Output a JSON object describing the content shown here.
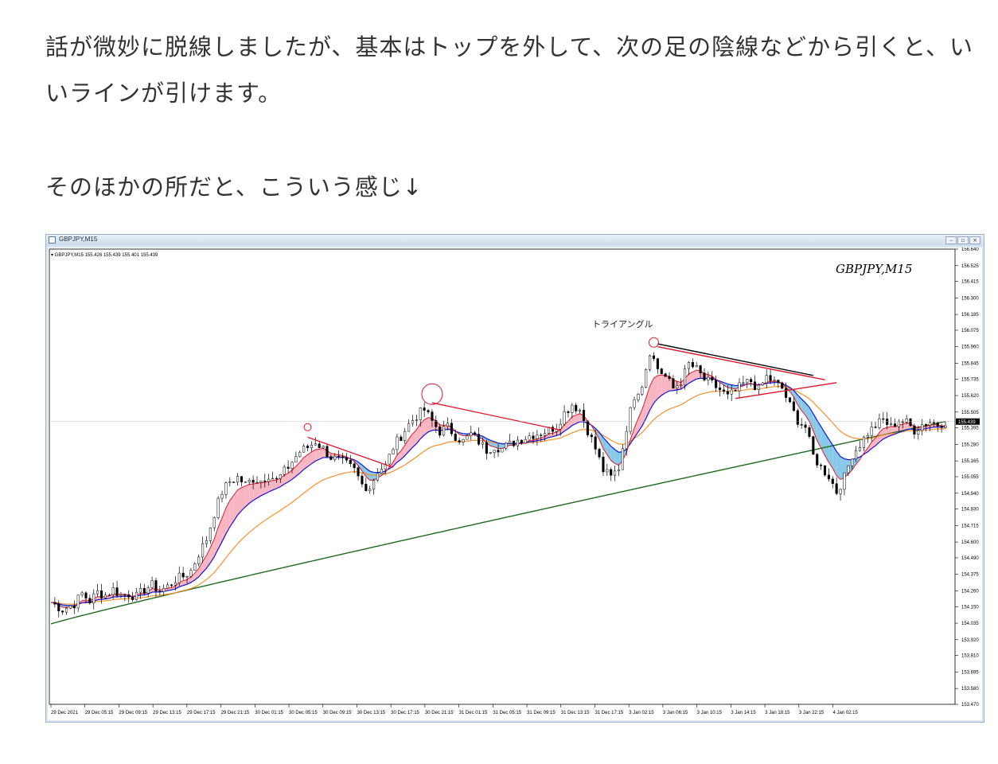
{
  "article": {
    "para1_line1": "話が微妙に脱線しましたが、基本はトップを外して、次の足の陰線などから引くと、い",
    "para1_line2": "いラインが引けます。",
    "para2": "そのほかの所だと、こういう感じ↓"
  },
  "window": {
    "title": "GBPJPY,M15",
    "buttons": {
      "minimize": "–",
      "restore": "▫",
      "close": "×"
    }
  },
  "chart_data": {
    "type": "candlestick",
    "symbol_label": "GBPJPY,M15",
    "info_line": "▾ GBPJPY,M15  155.426 155.439 155.401 155.439",
    "annotation": "トライアングル",
    "current_price": "155.439",
    "ylim": [
      153.47,
      156.64
    ],
    "yticks": [
      "156.640",
      "156.525",
      "156.415",
      "156.300",
      "156.185",
      "156.075",
      "155.960",
      "155.845",
      "155.735",
      "155.620",
      "155.505",
      "155.395",
      "155.280",
      "155.165",
      "155.055",
      "154.940",
      "154.830",
      "154.715",
      "154.600",
      "154.490",
      "154.375",
      "154.260",
      "154.150",
      "154.035",
      "153.920",
      "153.810",
      "153.695",
      "153.580",
      "153.470"
    ],
    "xticks": [
      "29 Dec 2021",
      "29 Dec 05:15",
      "29 Dec 09:15",
      "29 Dec 13:15",
      "29 Dec 17:15",
      "29 Dec 21:15",
      "30 Dec 01:15",
      "30 Dec 05:15",
      "30 Dec 09:15",
      "30 Dec 13:15",
      "30 Dec 17:15",
      "30 Dec 21:15",
      "31 Dec 01:15",
      "31 Dec 05:15",
      "31 Dec 09:15",
      "31 Dec 13:15",
      "31 Dec 17:15",
      "3 Jan 02:15",
      "3 Jan 06:15",
      "3 Jan 10:15",
      "3 Jan 14:15",
      "3 Jan 18:15",
      "3 Jan 22:15",
      "4 Jan 02:15"
    ],
    "close_path": [
      [
        0,
        154.18
      ],
      [
        3,
        154.13
      ],
      [
        6,
        154.17
      ],
      [
        8,
        154.24
      ],
      [
        10,
        154.19
      ],
      [
        12,
        154.25
      ],
      [
        14,
        154.23
      ],
      [
        16,
        154.27
      ],
      [
        18,
        154.23
      ],
      [
        20,
        154.24
      ],
      [
        22,
        154.22
      ],
      [
        24,
        154.27
      ],
      [
        26,
        154.3
      ],
      [
        28,
        154.26
      ],
      [
        30,
        154.29
      ],
      [
        32,
        154.34
      ],
      [
        34,
        154.36
      ],
      [
        36,
        154.4
      ],
      [
        38,
        154.52
      ],
      [
        40,
        154.62
      ],
      [
        42,
        154.8
      ],
      [
        44,
        154.95
      ],
      [
        46,
        155.02
      ],
      [
        48,
        155.05
      ],
      [
        50,
        155.0
      ],
      [
        52,
        155.04
      ],
      [
        54,
        155.03
      ],
      [
        56,
        155.07
      ],
      [
        58,
        155.03
      ],
      [
        60,
        155.09
      ],
      [
        62,
        155.16
      ],
      [
        64,
        155.23
      ],
      [
        66,
        155.26
      ],
      [
        68,
        155.3
      ],
      [
        70,
        155.25
      ],
      [
        72,
        155.19
      ],
      [
        74,
        155.17
      ],
      [
        76,
        155.14
      ],
      [
        78,
        155.1
      ],
      [
        80,
        155.0
      ],
      [
        82,
        154.98
      ],
      [
        84,
        155.1
      ],
      [
        86,
        155.13
      ],
      [
        88,
        155.26
      ],
      [
        90,
        155.34
      ],
      [
        92,
        155.42
      ],
      [
        94,
        155.48
      ],
      [
        96,
        155.52
      ],
      [
        98,
        155.44
      ],
      [
        100,
        155.37
      ],
      [
        102,
        155.4
      ],
      [
        104,
        155.34
      ],
      [
        106,
        155.3
      ],
      [
        108,
        155.35
      ],
      [
        110,
        155.3
      ],
      [
        112,
        155.24
      ],
      [
        114,
        155.27
      ],
      [
        116,
        155.25
      ],
      [
        118,
        155.28
      ],
      [
        120,
        155.31
      ],
      [
        122,
        155.33
      ],
      [
        124,
        155.35
      ],
      [
        126,
        155.36
      ],
      [
        128,
        155.38
      ],
      [
        130,
        155.41
      ],
      [
        132,
        155.5
      ],
      [
        134,
        155.56
      ],
      [
        136,
        155.52
      ],
      [
        138,
        155.38
      ],
      [
        140,
        155.25
      ],
      [
        142,
        155.1
      ],
      [
        144,
        155.05
      ],
      [
        146,
        155.12
      ],
      [
        148,
        155.4
      ],
      [
        150,
        155.62
      ],
      [
        152,
        155.7
      ],
      [
        154,
        155.93
      ],
      [
        156,
        155.81
      ],
      [
        158,
        155.75
      ],
      [
        160,
        155.67
      ],
      [
        162,
        155.72
      ],
      [
        164,
        155.84
      ],
      [
        166,
        155.8
      ],
      [
        168,
        155.73
      ],
      [
        170,
        155.7
      ],
      [
        172,
        155.66
      ],
      [
        174,
        155.61
      ],
      [
        176,
        155.65
      ],
      [
        178,
        155.7
      ],
      [
        180,
        155.72
      ],
      [
        182,
        155.66
      ],
      [
        184,
        155.75
      ],
      [
        186,
        155.71
      ],
      [
        188,
        155.67
      ],
      [
        190,
        155.55
      ],
      [
        192,
        155.45
      ],
      [
        194,
        155.4
      ],
      [
        196,
        155.2
      ],
      [
        198,
        155.12
      ],
      [
        200,
        155.06
      ],
      [
        202,
        154.95
      ],
      [
        204,
        155.05
      ],
      [
        206,
        155.21
      ],
      [
        208,
        155.28
      ],
      [
        210,
        155.36
      ],
      [
        212,
        155.41
      ],
      [
        214,
        155.45
      ],
      [
        216,
        155.4
      ],
      [
        218,
        155.45
      ],
      [
        220,
        155.43
      ],
      [
        222,
        155.38
      ],
      [
        224,
        155.42
      ],
      [
        226,
        155.44
      ],
      [
        228,
        155.42
      ],
      [
        230,
        155.44
      ]
    ],
    "reference_lines": {
      "ma_long_start": 154.03,
      "ma_long_end": 155.44
    },
    "drawn_lines": "red trendlines from swing highs; black and red triangle lines; red circles marking tops"
  }
}
